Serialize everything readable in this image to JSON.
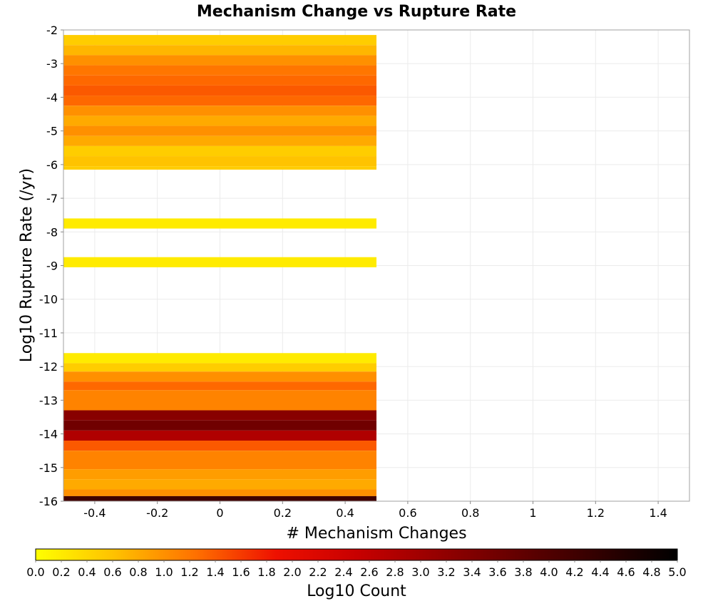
{
  "chart_data": {
    "type": "heatmap",
    "title": "Mechanism Change vs Rupture Rate",
    "xlabel": "# Mechanism Changes",
    "ylabel": "Log10 Rupture Rate (/yr)",
    "xlim": [
      -0.5,
      1.5
    ],
    "ylim": [
      -16,
      -2
    ],
    "x_ticks": [
      "-0.4",
      "-0.2",
      "0",
      "0.2",
      "0.4",
      "0.6",
      "0.8",
      "1",
      "1.2",
      "1.4"
    ],
    "y_ticks": [
      "-2",
      "-3",
      "-4",
      "-5",
      "-6",
      "-7",
      "-8",
      "-9",
      "-10",
      "-11",
      "-12",
      "-13",
      "-14",
      "-15",
      "-16"
    ],
    "grid": true,
    "cells": [
      {
        "x0": -0.5,
        "x1": 0.5,
        "y0": -2.45,
        "y1": -2.15,
        "value": 0.5
      },
      {
        "x0": -0.5,
        "x1": 0.5,
        "y0": -2.75,
        "y1": -2.45,
        "value": 0.7
      },
      {
        "x0": -0.5,
        "x1": 0.5,
        "y0": -3.05,
        "y1": -2.75,
        "value": 1.0
      },
      {
        "x0": -0.5,
        "x1": 0.5,
        "y0": -3.35,
        "y1": -3.05,
        "value": 1.2
      },
      {
        "x0": -0.5,
        "x1": 0.5,
        "y0": -3.65,
        "y1": -3.35,
        "value": 1.3
      },
      {
        "x0": -0.5,
        "x1": 0.5,
        "y0": -3.95,
        "y1": -3.65,
        "value": 1.4
      },
      {
        "x0": -0.5,
        "x1": 0.5,
        "y0": -4.25,
        "y1": -3.95,
        "value": 1.3
      },
      {
        "x0": -0.5,
        "x1": 0.5,
        "y0": -4.55,
        "y1": -4.25,
        "value": 1.0
      },
      {
        "x0": -0.5,
        "x1": 0.5,
        "y0": -4.85,
        "y1": -4.55,
        "value": 0.8
      },
      {
        "x0": -0.5,
        "x1": 0.5,
        "y0": -5.15,
        "y1": -4.85,
        "value": 1.0
      },
      {
        "x0": -0.5,
        "x1": 0.5,
        "y0": -5.45,
        "y1": -5.15,
        "value": 0.8
      },
      {
        "x0": -0.5,
        "x1": 0.5,
        "y0": -5.75,
        "y1": -5.45,
        "value": 0.5
      },
      {
        "x0": -0.5,
        "x1": 0.5,
        "y0": -6.05,
        "y1": -5.75,
        "value": 0.6
      },
      {
        "x0": -0.5,
        "x1": 0.5,
        "y0": -6.15,
        "y1": -6.05,
        "value": 0.5
      },
      {
        "x0": -0.5,
        "x1": 0.5,
        "y0": -7.9,
        "y1": -7.6,
        "value": 0.2
      },
      {
        "x0": -0.5,
        "x1": 0.5,
        "y0": -9.05,
        "y1": -8.75,
        "value": 0.2
      },
      {
        "x0": -0.5,
        "x1": 0.5,
        "y0": -11.9,
        "y1": -11.6,
        "value": 0.2
      },
      {
        "x0": -0.5,
        "x1": 0.5,
        "y0": -12.15,
        "y1": -11.9,
        "value": 0.5
      },
      {
        "x0": -0.5,
        "x1": 0.5,
        "y0": -12.45,
        "y1": -12.15,
        "value": 1.0
      },
      {
        "x0": -0.5,
        "x1": 0.5,
        "y0": -12.7,
        "y1": -12.45,
        "value": 1.3
      },
      {
        "x0": -0.5,
        "x1": 0.5,
        "y0": -13.3,
        "y1": -12.7,
        "value": 1.1
      },
      {
        "x0": -0.5,
        "x1": 0.5,
        "y0": -13.6,
        "y1": -13.3,
        "value": 3.3
      },
      {
        "x0": -0.5,
        "x1": 0.5,
        "y0": -13.9,
        "y1": -13.6,
        "value": 3.6
      },
      {
        "x0": -0.5,
        "x1": 0.5,
        "y0": -14.2,
        "y1": -13.9,
        "value": 2.8
      },
      {
        "x0": -0.5,
        "x1": 0.5,
        "y0": -14.5,
        "y1": -14.2,
        "value": 1.4
      },
      {
        "x0": -0.5,
        "x1": 0.5,
        "y0": -15.05,
        "y1": -14.5,
        "value": 1.1
      },
      {
        "x0": -0.5,
        "x1": 0.5,
        "y0": -15.35,
        "y1": -15.05,
        "value": 0.9
      },
      {
        "x0": -0.5,
        "x1": 0.5,
        "y0": -15.65,
        "y1": -15.35,
        "value": 0.8
      },
      {
        "x0": -0.5,
        "x1": 0.5,
        "y0": -15.85,
        "y1": -15.65,
        "value": 1.0
      },
      {
        "x0": -0.5,
        "x1": 0.5,
        "y0": -16.0,
        "y1": -15.85,
        "value": 4.2
      }
    ],
    "colorbar": {
      "label": "Log10 Count",
      "min": 0.0,
      "max": 5.0,
      "ticks": [
        "0.0",
        "0.2",
        "0.4",
        "0.6",
        "0.8",
        "1.0",
        "1.2",
        "1.4",
        "1.6",
        "1.8",
        "2.0",
        "2.2",
        "2.4",
        "2.6",
        "2.8",
        "3.0",
        "3.2",
        "3.4",
        "3.6",
        "3.8",
        "4.0",
        "4.2",
        "4.4",
        "4.6",
        "4.8",
        "5.0"
      ],
      "colors": [
        "#ffff00",
        "#ffc000",
        "#ff7000",
        "#ee1000",
        "#c80000",
        "#960000",
        "#640000",
        "#320000",
        "#000000"
      ]
    }
  }
}
